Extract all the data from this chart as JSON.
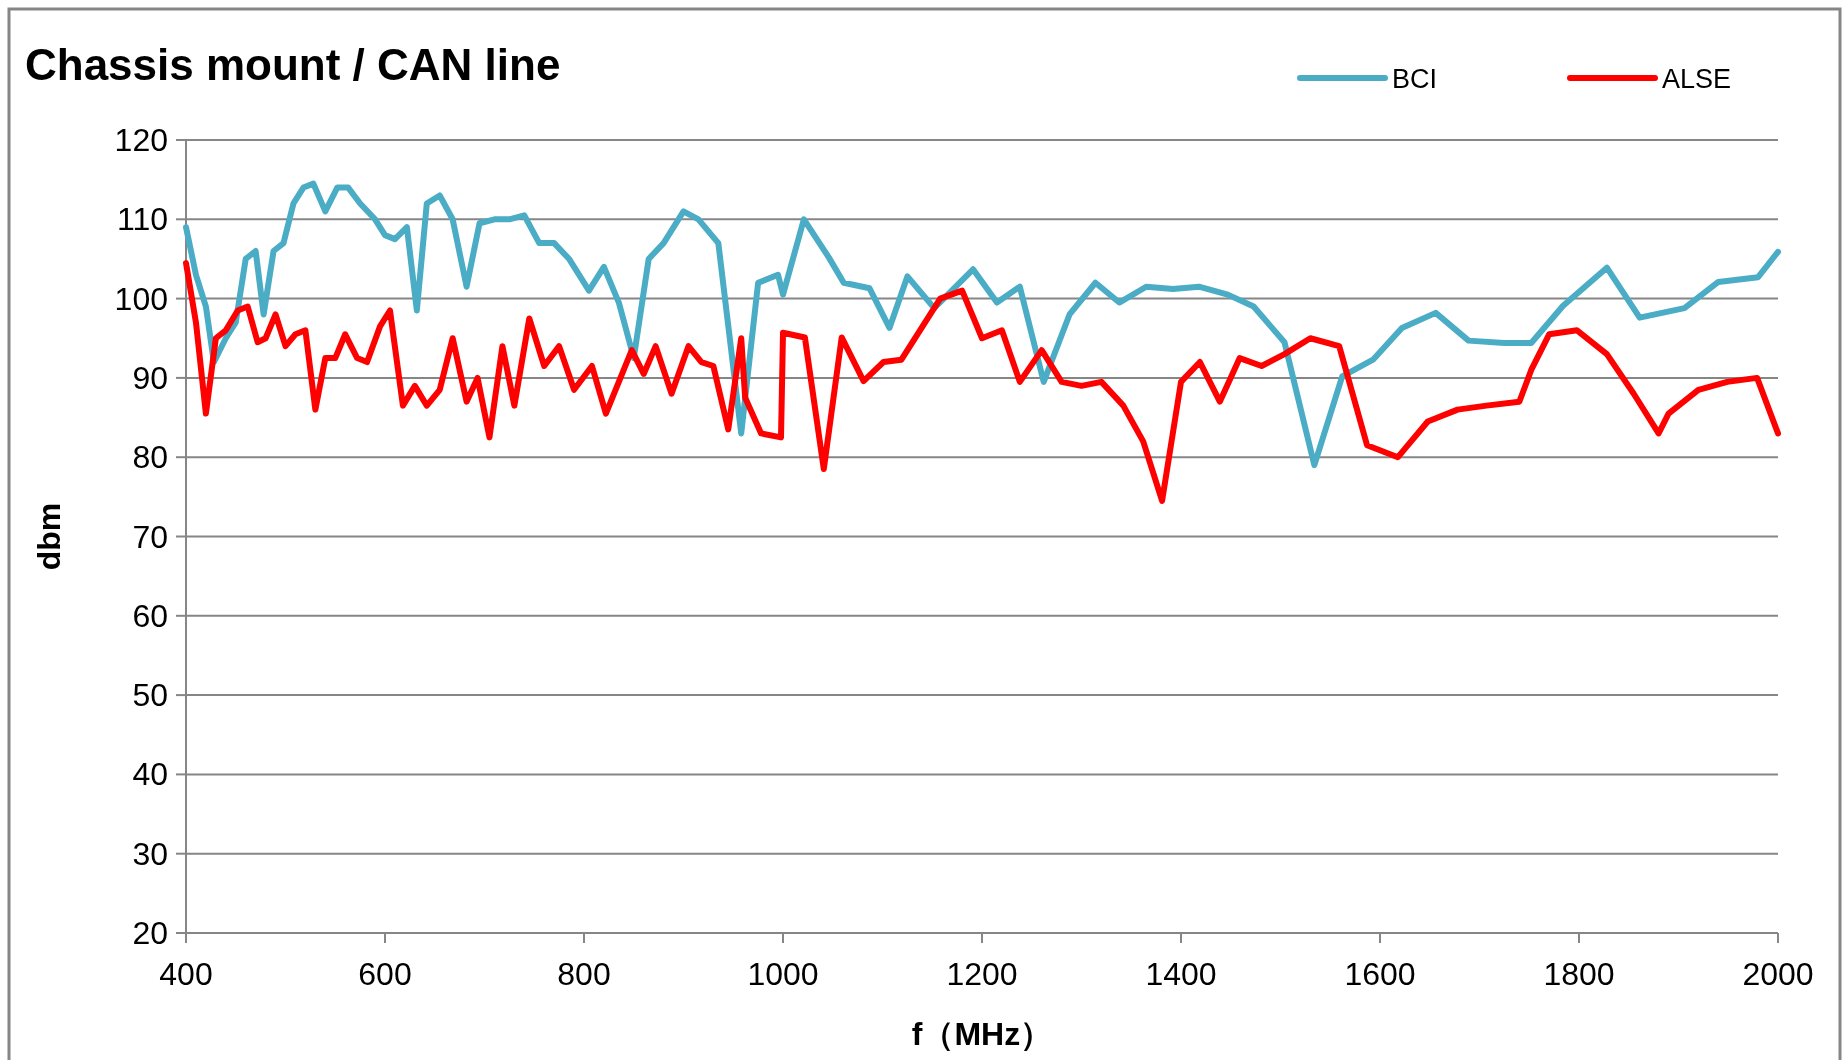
{
  "chart_data": {
    "type": "line",
    "title": "Chassis mount / CAN line",
    "xlabel": "f（MHz）",
    "ylabel": "dbm",
    "xlim": [
      400,
      2000
    ],
    "xticks": [
      400,
      600,
      800,
      1000,
      1200,
      1400,
      1600,
      1800,
      2000
    ],
    "ylim": [
      20,
      120
    ],
    "yticks": [
      20,
      30,
      40,
      50,
      60,
      70,
      80,
      90,
      100,
      110,
      120
    ],
    "grid": "y",
    "legend": "top right",
    "marker": "none",
    "line_style": "solid",
    "series": [
      {
        "name": "BCI",
        "color": "#4bacc6",
        "x": [
          400,
          410,
          420,
          428,
          440,
          450,
          460,
          470,
          478,
          488,
          498,
          508,
          518,
          528,
          540,
          552,
          563,
          575,
          590,
          600,
          610,
          622,
          632,
          642,
          655,
          668,
          682,
          695,
          710,
          725,
          740,
          755,
          770,
          785,
          805,
          820,
          835,
          850,
          865,
          880,
          900,
          915,
          935,
          958,
          975,
          995,
          1000,
          1021,
          1046,
          1061,
          1087,
          1107,
          1125,
          1152,
          1191,
          1215,
          1238,
          1262,
          1288,
          1314,
          1338,
          1365,
          1392,
          1418,
          1447,
          1473,
          1504,
          1534,
          1562,
          1593,
          1622,
          1656,
          1689,
          1725,
          1752,
          1784,
          1828,
          1861,
          1906,
          1940,
          1980,
          2000
        ],
        "values": [
          109,
          103,
          99,
          92,
          95,
          97,
          105,
          106,
          98,
          106,
          107,
          112,
          114,
          114.5,
          111,
          114,
          114,
          112,
          110,
          108,
          107.5,
          109,
          98.5,
          112,
          113,
          110,
          101.5,
          109.5,
          110,
          110,
          110.5,
          107,
          107,
          105,
          101,
          104,
          99.5,
          92.5,
          105,
          107,
          111,
          110,
          107,
          83,
          102,
          103,
          100.5,
          110,
          105.2,
          102,
          101.3,
          96.3,
          102.8,
          98.8,
          103.7,
          99.5,
          101.5,
          89.5,
          98,
          102,
          99.5,
          101.5,
          101.2,
          101.5,
          100.5,
          99,
          94.5,
          79,
          90.2,
          92.3,
          96.3,
          98.2,
          94.7,
          94.4,
          94.4,
          99.1,
          103.9,
          97.6,
          98.8,
          102.1,
          102.7,
          105.9
        ]
      },
      {
        "name": "ALSE",
        "color": "#ff0000",
        "x": [
          400,
          410,
          420,
          430,
          440,
          452,
          462,
          472,
          480,
          490,
          500,
          510,
          520,
          530,
          540,
          550,
          560,
          572,
          582,
          595,
          605,
          618,
          630,
          642,
          655,
          668,
          682,
          693,
          705,
          718,
          730,
          745,
          760,
          775,
          790,
          808,
          822,
          835,
          848,
          860,
          872,
          888,
          905,
          918,
          930,
          945,
          958,
          962,
          978,
          998,
          1000,
          1022,
          1041,
          1059,
          1081,
          1101,
          1119,
          1158,
          1180,
          1200,
          1220,
          1238,
          1260,
          1280,
          1300,
          1320,
          1342,
          1362,
          1381,
          1400,
          1419,
          1439,
          1459,
          1481,
          1504,
          1530,
          1559,
          1587,
          1618,
          1648,
          1678,
          1707,
          1740,
          1752,
          1770,
          1798,
          1828,
          1855,
          1880,
          1890,
          1920,
          1949,
          1979,
          2000
        ],
        "values": [
          104.5,
          97,
          85.5,
          95,
          96,
          98.5,
          99,
          94.5,
          95,
          98,
          94,
          95.5,
          96,
          86,
          92.5,
          92.5,
          95.5,
          92.5,
          92,
          96.5,
          98.5,
          86.5,
          89,
          86.5,
          88.5,
          95,
          87,
          90,
          82.5,
          94,
          86.5,
          97.5,
          91.5,
          94,
          88.5,
          91.5,
          85.5,
          89.5,
          93.5,
          90.5,
          94,
          88,
          94,
          92,
          91.5,
          83.5,
          95,
          87.5,
          83,
          82.5,
          95.7,
          95.1,
          78.5,
          95.1,
          89.6,
          92,
          92.3,
          100,
          101,
          95,
          96,
          89.5,
          93.5,
          89.5,
          89,
          89.5,
          86.5,
          82,
          74.5,
          89.5,
          92,
          87,
          92.5,
          91.5,
          93,
          95,
          94,
          81.5,
          80,
          84.5,
          86,
          86.5,
          87,
          91,
          95.5,
          96,
          93,
          88,
          83,
          85.5,
          88.5,
          89.5,
          90,
          83
        ]
      }
    ]
  }
}
